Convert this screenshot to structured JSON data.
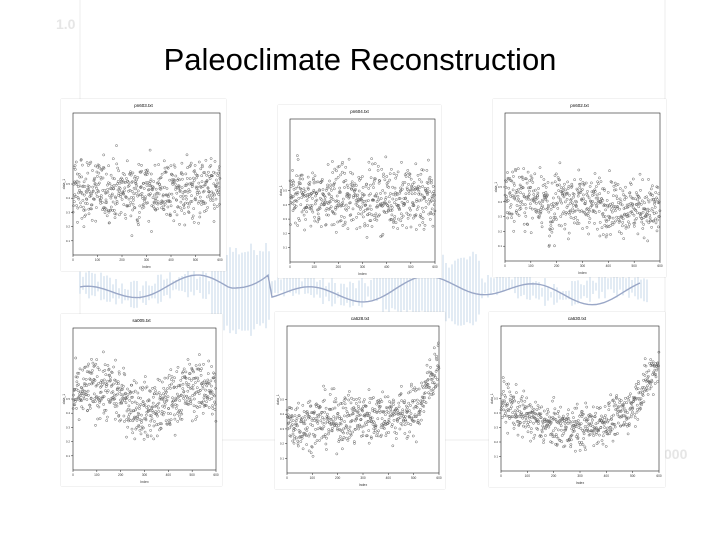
{
  "slide": {
    "title": "Paleoclimate Reconstruction",
    "bg_ytick_top": "1.0",
    "bg_xtick_right": "000"
  },
  "colors": {
    "points": "#666666",
    "frame": "#222222",
    "bg_series": "#b6cde3",
    "bg_smooth": "#9aa7c7"
  },
  "chart_data": [
    {
      "type": "scatter",
      "title": "pn603.txt",
      "xlabel": "Index",
      "ylabel": "data_1",
      "xticks": [
        0,
        100,
        200,
        300,
        400,
        500,
        600
      ],
      "xlim": [
        0,
        600
      ],
      "ylim": [
        0,
        1
      ],
      "n": 600,
      "pattern": "flat",
      "yticks": [
        0.1,
        0.2,
        0.3,
        0.4,
        0.5
      ]
    },
    {
      "type": "scatter",
      "title": "pn604.txt",
      "xlabel": "Index",
      "ylabel": "data_1",
      "xticks": [
        0,
        100,
        200,
        300,
        400,
        500,
        600
      ],
      "xlim": [
        0,
        600
      ],
      "ylim": [
        0,
        1
      ],
      "n": 600,
      "pattern": "flat",
      "yticks": [
        0.1,
        0.2,
        0.3,
        0.4,
        0.5
      ]
    },
    {
      "type": "scatter",
      "title": "pn602.txt",
      "xlabel": "Index",
      "ylabel": "data_1",
      "xticks": [
        0,
        100,
        200,
        300,
        400,
        500,
        600
      ],
      "xlim": [
        0,
        600
      ],
      "ylim": [
        0,
        1
      ],
      "n": 600,
      "pattern": "dip",
      "yticks": [
        0.1,
        0.2,
        0.3,
        0.4,
        0.5
      ]
    },
    {
      "type": "scatter",
      "title": "sa005.txt",
      "xlabel": "Index",
      "ylabel": "data_1",
      "xticks": [
        0,
        100,
        200,
        300,
        400,
        500,
        600
      ],
      "xlim": [
        0,
        600
      ],
      "ylim": [
        0,
        1
      ],
      "n": 600,
      "pattern": "wave",
      "yticks": [
        0.1,
        0.2,
        0.3,
        0.4,
        0.5
      ]
    },
    {
      "type": "scatter",
      "title": "ca628.txt",
      "xlabel": "Index",
      "ylabel": "data_1",
      "xticks": [
        0,
        100,
        200,
        300,
        400,
        500,
        600
      ],
      "xlim": [
        0,
        600
      ],
      "ylim": [
        0,
        1
      ],
      "n": 600,
      "pattern": "rise",
      "yticks": [
        0.1,
        0.2,
        0.3,
        0.4,
        0.5
      ]
    },
    {
      "type": "scatter",
      "title": "ca630.txt",
      "xlabel": "Index",
      "ylabel": "data_1",
      "xticks": [
        0,
        100,
        200,
        300,
        400,
        500,
        600
      ],
      "xlim": [
        0,
        600
      ],
      "ylim": [
        0,
        1
      ],
      "n": 600,
      "pattern": "ushape",
      "yticks": [
        0.1,
        0.2,
        0.3,
        0.4,
        0.5
      ]
    }
  ]
}
